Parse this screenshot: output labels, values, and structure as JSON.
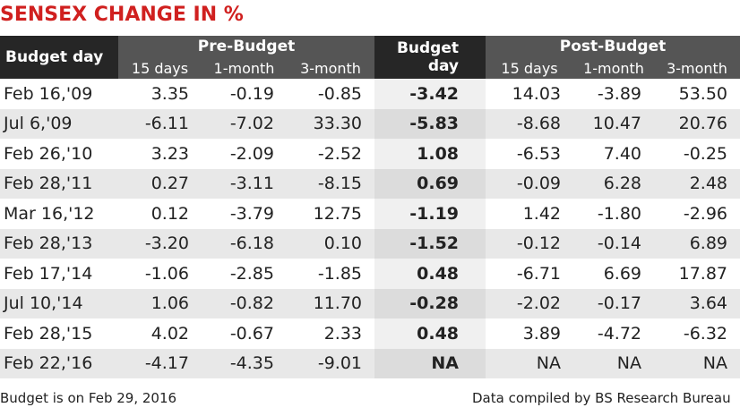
{
  "title": "SENSEX CHANGE IN %",
  "table": {
    "group_headers": {
      "budget_day": "Budget day",
      "pre": "Pre-Budget",
      "budget": "Budget day",
      "post": "Post-Budget"
    },
    "sub_headers": {
      "pre": [
        "15 days",
        "1-month",
        "3-month"
      ],
      "post": [
        "15 days",
        "1-month",
        "3-month"
      ]
    },
    "rows": [
      [
        "Feb 16,'09",
        "3.35",
        "-0.19",
        "-0.85",
        "-3.42",
        "14.03",
        "-3.89",
        "53.50"
      ],
      [
        "Jul 6,'09",
        "-6.11",
        "-7.02",
        "33.30",
        "-5.83",
        "-8.68",
        "10.47",
        "20.76"
      ],
      [
        "Feb 26,'10",
        "3.23",
        "-2.09",
        "-2.52",
        "1.08",
        "-6.53",
        "7.40",
        "-0.25"
      ],
      [
        "Feb 28,'11",
        "0.27",
        "-3.11",
        "-8.15",
        "0.69",
        "-0.09",
        "6.28",
        "2.48"
      ],
      [
        "Mar 16,'12",
        "0.12",
        "-3.79",
        "12.75",
        "-1.19",
        "1.42",
        "-1.80",
        "-2.96"
      ],
      [
        "Feb 28,'13",
        "-3.20",
        "-6.18",
        "0.10",
        "-1.52",
        "-0.12",
        "-0.14",
        "6.89"
      ],
      [
        "Feb 17,'14",
        "-1.06",
        "-2.85",
        "-1.85",
        "0.48",
        "-6.71",
        "6.69",
        "17.87"
      ],
      [
        "Jul 10,'14",
        "1.06",
        "-0.82",
        "11.70",
        "-0.28",
        "-2.02",
        "-0.17",
        "3.64"
      ],
      [
        "Feb 28,'15",
        "4.02",
        "-0.67",
        "2.33",
        "0.48",
        "3.89",
        "-4.72",
        "-6.32"
      ],
      [
        "Feb 22,'16",
        "-4.17",
        "-4.35",
        "-9.01",
        "NA",
        "NA",
        "NA",
        "NA"
      ]
    ]
  },
  "footer": {
    "note": "Budget is on Feb 29, 2016",
    "source": "Data compiled by BS Research Bureau"
  }
}
